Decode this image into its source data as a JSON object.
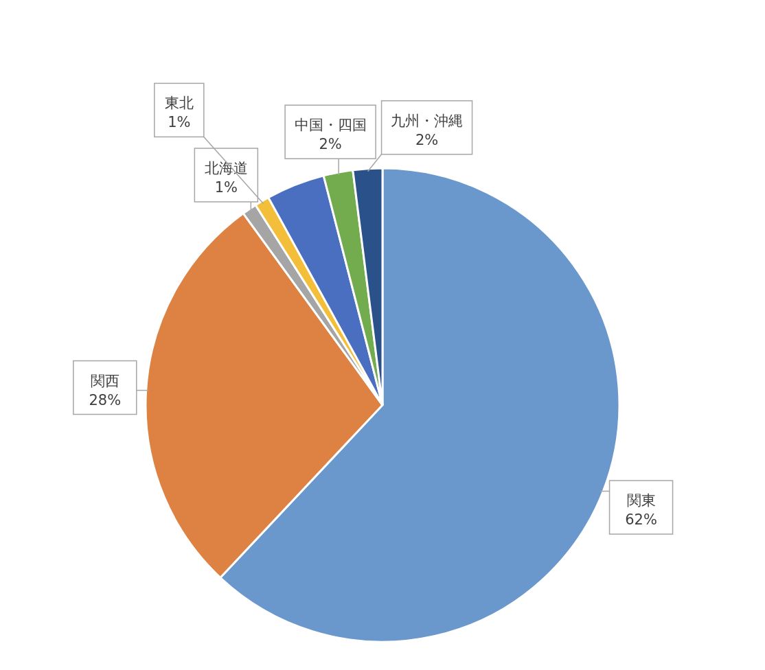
{
  "chart_data": {
    "type": "pie",
    "categories": [
      "関東",
      "関西",
      "北海道",
      "東北",
      null,
      "中国・四国",
      "九州・沖縄"
    ],
    "values": [
      62,
      28,
      1,
      1,
      4,
      2,
      2
    ],
    "colors": [
      "#6a98cd",
      "#dd8243",
      "#a5a5a5",
      "#f3bf3a",
      "#4a6fc0",
      "#72ac4e",
      "#2a5189"
    ],
    "value_labels": [
      "62%",
      "28%",
      "1%",
      "1%",
      null,
      "2%",
      "2%"
    ]
  }
}
